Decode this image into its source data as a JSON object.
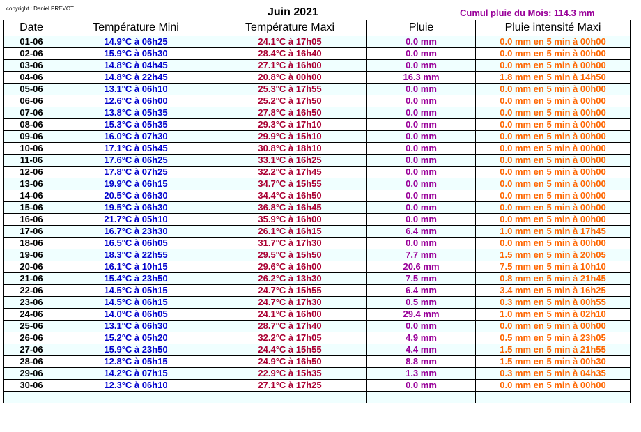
{
  "header": {
    "copyright": "copyright : Daniel PRÉVOT",
    "title": "Juin 2021",
    "cumul": "Cumul pluie du Mois: 114.3 mm"
  },
  "columns": [
    "Date",
    "Température Mini",
    "Température Maxi",
    "Pluie",
    "Pluie intensité Maxi"
  ],
  "rows": [
    {
      "date": "01-06",
      "tmin": "14.9°C à 06h25",
      "tmax": "24.1°C à 17h05",
      "rain": "0.0 mm",
      "rmax": "0.0 mm en 5 min à 00h00"
    },
    {
      "date": "02-06",
      "tmin": "15.9°C à 05h30",
      "tmax": "28.4°C à 16h40",
      "rain": "0.0 mm",
      "rmax": "0.0 mm en 5 min à 00h00"
    },
    {
      "date": "03-06",
      "tmin": "14.8°C à 04h45",
      "tmax": "27.1°C à 16h00",
      "rain": "0.0 mm",
      "rmax": "0.0 mm en 5 min à 00h00"
    },
    {
      "date": "04-06",
      "tmin": "14.8°C à 22h45",
      "tmax": "20.8°C à 00h00",
      "rain": "16.3 mm",
      "rmax": "1.8 mm en 5 min à 14h50"
    },
    {
      "date": "05-06",
      "tmin": "13.1°C à 06h10",
      "tmax": "25.3°C à 17h55",
      "rain": "0.0 mm",
      "rmax": "0.0 mm en 5 min à 00h00"
    },
    {
      "date": "06-06",
      "tmin": "12.6°C à 06h00",
      "tmax": "25.2°C à 17h50",
      "rain": "0.0 mm",
      "rmax": "0.0 mm en 5 min à 00h00"
    },
    {
      "date": "07-06",
      "tmin": "13.8°C à 05h35",
      "tmax": "27.8°C à 16h50",
      "rain": "0.0 mm",
      "rmax": "0.0 mm en 5 min à 00h00"
    },
    {
      "date": "08-06",
      "tmin": "15.3°C à 05h35",
      "tmax": "29.3°C à 17h10",
      "rain": "0.0 mm",
      "rmax": "0.0 mm en 5 min à 00h00"
    },
    {
      "date": "09-06",
      "tmin": "16.0°C à 07h30",
      "tmax": "29.9°C à 15h10",
      "rain": "0.0 mm",
      "rmax": "0.0 mm en 5 min à 00h00"
    },
    {
      "date": "10-06",
      "tmin": "17.1°C à 05h45",
      "tmax": "30.8°C à 18h10",
      "rain": "0.0 mm",
      "rmax": "0.0 mm en 5 min à 00h00"
    },
    {
      "date": "11-06",
      "tmin": "17.6°C à 06h25",
      "tmax": "33.1°C à 16h25",
      "rain": "0.0 mm",
      "rmax": "0.0 mm en 5 min à 00h00"
    },
    {
      "date": "12-06",
      "tmin": "17.8°C à 07h25",
      "tmax": "32.2°C à 17h45",
      "rain": "0.0 mm",
      "rmax": "0.0 mm en 5 min à 00h00"
    },
    {
      "date": "13-06",
      "tmin": "19.9°C à 06h15",
      "tmax": "34.7°C à 15h55",
      "rain": "0.0 mm",
      "rmax": "0.0 mm en 5 min à 00h00"
    },
    {
      "date": "14-06",
      "tmin": "20.5°C à 06h30",
      "tmax": "34.4°C à 16h50",
      "rain": "0.0 mm",
      "rmax": "0.0 mm en 5 min à 00h00"
    },
    {
      "date": "15-06",
      "tmin": "19.5°C à 06h30",
      "tmax": "36.8°C à 16h45",
      "rain": "0.0 mm",
      "rmax": "0.0 mm en 5 min à 00h00"
    },
    {
      "date": "16-06",
      "tmin": "21.7°C à 05h10",
      "tmax": "35.9°C à 16h00",
      "rain": "0.0 mm",
      "rmax": "0.0 mm en 5 min à 00h00"
    },
    {
      "date": "17-06",
      "tmin": "16.7°C à 23h30",
      "tmax": "26.1°C à 16h15",
      "rain": "6.4 mm",
      "rmax": "1.0 mm en 5 min à 17h45"
    },
    {
      "date": "18-06",
      "tmin": "16.5°C à 06h05",
      "tmax": "31.7°C à 17h30",
      "rain": "0.0 mm",
      "rmax": "0.0 mm en 5 min à 00h00"
    },
    {
      "date": "19-06",
      "tmin": "18.3°C à 22h55",
      "tmax": "29.5°C à 15h50",
      "rain": "7.7 mm",
      "rmax": "1.5 mm en 5 min à 20h05"
    },
    {
      "date": "20-06",
      "tmin": "16.1°C à 10h15",
      "tmax": "29.6°C à 16h00",
      "rain": "20.6 mm",
      "rmax": "7.5 mm en 5 min à 10h10"
    },
    {
      "date": "21-06",
      "tmin": "15.4°C à 23h50",
      "tmax": "26.2°C à 13h30",
      "rain": "7.5 mm",
      "rmax": "0.8 mm en 5 min à 21h45"
    },
    {
      "date": "22-06",
      "tmin": "14.5°C à 05h15",
      "tmax": "24.7°C à 15h55",
      "rain": "6.4 mm",
      "rmax": "3.4 mm en 5 min à 16h25"
    },
    {
      "date": "23-06",
      "tmin": "14.5°C à 06h15",
      "tmax": "24.7°C à 17h30",
      "rain": "0.5 mm",
      "rmax": "0.3 mm en 5 min à 00h55"
    },
    {
      "date": "24-06",
      "tmin": "14.0°C à 06h05",
      "tmax": "24.1°C à 16h00",
      "rain": "29.4 mm",
      "rmax": "1.0 mm en 5 min à 02h10"
    },
    {
      "date": "25-06",
      "tmin": "13.1°C à 06h30",
      "tmax": "28.7°C à 17h40",
      "rain": "0.0 mm",
      "rmax": "0.0 mm en 5 min à 00h00"
    },
    {
      "date": "26-06",
      "tmin": "15.2°C à 05h20",
      "tmax": "32.2°C à 17h05",
      "rain": "4.9 mm",
      "rmax": "0.5 mm en 5 min à 23h05"
    },
    {
      "date": "27-06",
      "tmin": "15.9°C à 23h50",
      "tmax": "24.4°C à 15h55",
      "rain": "4.4 mm",
      "rmax": "1.5 mm en 5 min à 21h55"
    },
    {
      "date": "28-06",
      "tmin": "12.8°C à 05h15",
      "tmax": "24.9°C à 16h50",
      "rain": "8.8 mm",
      "rmax": "1.5 mm en 5 min à 00h30"
    },
    {
      "date": "29-06",
      "tmin": "14.2°C à 07h15",
      "tmax": "22.9°C à 15h35",
      "rain": "1.3 mm",
      "rmax": "0.3 mm en 5 min à 04h35"
    },
    {
      "date": "30-06",
      "tmin": "12.3°C à 06h10",
      "tmax": "27.1°C à 17h25",
      "rain": "0.0 mm",
      "rmax": "0.0 mm en 5 min à 00h00"
    }
  ],
  "colors": {
    "date": "#000000",
    "tmin": "#0000cc",
    "tmax": "#aa0033",
    "rain": "#990099",
    "rmax": "#ff6600",
    "row_alt_bg": "#f0ffff"
  }
}
